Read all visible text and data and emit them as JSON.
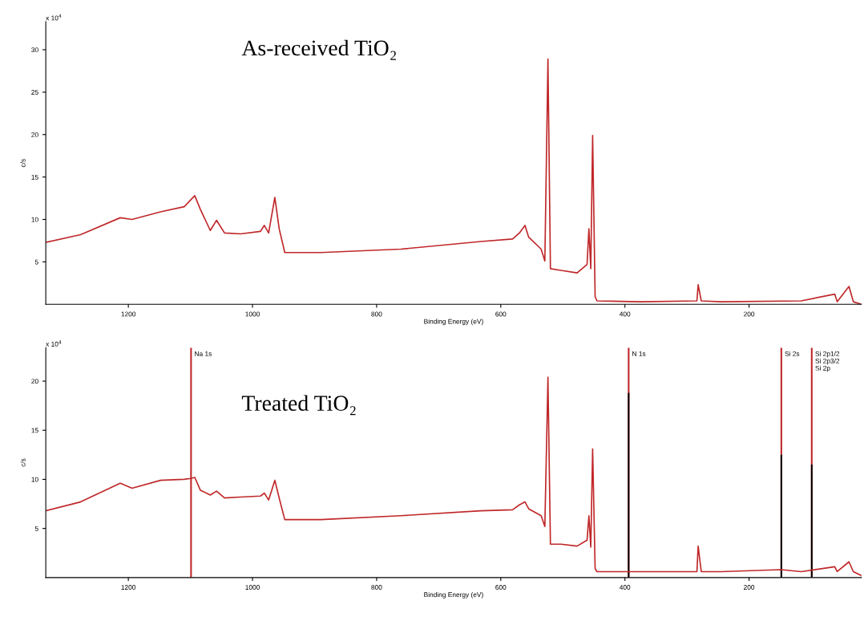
{
  "chart_data": [
    {
      "type": "line",
      "xlabel": "Binding Energy (eV)",
      "ylabel": "c/s",
      "annotations": [
        "As-received TiO₂",
        "x 10$^{4}$"
      ],
      "xlim": [
        1333,
        19
      ],
      "xticks": [
        1200,
        1000,
        800,
        600,
        400,
        200
      ],
      "ylim": [
        0,
        33.3
      ],
      "yticks": [
        5,
        10,
        15,
        20,
        25,
        30
      ],
      "grid": false,
      "legend": false,
      "series": [
        {
          "color": "#c0282a",
          "x": [
            1333,
            1277,
            1213,
            1194,
            1148,
            1110,
            1093,
            1084,
            1068,
            1058,
            1045,
            1019,
            987,
            981,
            974,
            964,
            957,
            948,
            890,
            761,
            632,
            581,
            570,
            561,
            555,
            535,
            529,
            524,
            520,
            503,
            477,
            461,
            458,
            455,
            452,
            448,
            445,
            374,
            284,
            282,
            277,
            245,
            116,
            62,
            58,
            39,
            32,
            19
          ],
          "values": [
            7.3,
            8.2,
            10.2,
            10.0,
            10.9,
            11.5,
            12.8,
            11.2,
            8.7,
            9.9,
            8.4,
            8.3,
            8.6,
            9.3,
            8.4,
            12.6,
            8.9,
            6.1,
            6.1,
            6.5,
            7.4,
            7.7,
            8.4,
            9.3,
            7.9,
            6.5,
            5.1,
            28.9,
            4.2,
            4.0,
            3.7,
            4.7,
            8.9,
            4.2,
            19.9,
            0.9,
            0.4,
            0.3,
            0.4,
            2.3,
            0.4,
            0.3,
            0.4,
            1.2,
            0.3,
            2.1,
            0.3,
            0.0
          ]
        }
      ]
    },
    {
      "type": "line",
      "xlabel": "Binding Energy (eV)",
      "ylabel": "c/s",
      "annotations": [
        "Treated TiO₂",
        "x 10$^{4}$"
      ],
      "xlim": [
        1333,
        19
      ],
      "xticks": [
        1200,
        1000,
        800,
        600,
        400,
        200
      ],
      "ylim": [
        0,
        23.4
      ],
      "yticks": [
        5,
        10,
        15,
        20
      ],
      "grid": false,
      "legend": false,
      "ref_lines": [
        {
          "axis": "x",
          "value": 1099,
          "label": "Na 1s",
          "color": "#c0282a"
        },
        {
          "axis": "x",
          "value": 394,
          "label": "N 1s",
          "color": "#c0282a"
        },
        {
          "axis": "x",
          "value": 148,
          "label": "Si 2s",
          "color": "#c0282a"
        },
        {
          "axis": "x",
          "value": 99,
          "label": "Si 2p1/2\nSi 2p3/2\nSi 2p",
          "color": "#c0282a"
        }
      ],
      "series": [
        {
          "color": "#c0282a",
          "x": [
            1333,
            1277,
            1213,
            1194,
            1148,
            1110,
            1099,
            1093,
            1084,
            1068,
            1058,
            1045,
            1019,
            987,
            981,
            974,
            964,
            957,
            948,
            890,
            761,
            632,
            581,
            570,
            561,
            555,
            535,
            529,
            524,
            520,
            503,
            477,
            461,
            458,
            455,
            452,
            448,
            445,
            374,
            284,
            282,
            277,
            245,
            148,
            116,
            62,
            58,
            39,
            32,
            19
          ],
          "values": [
            6.8,
            7.7,
            9.6,
            9.1,
            9.9,
            10.0,
            10.1,
            10.2,
            8.9,
            8.4,
            8.8,
            8.1,
            8.2,
            8.3,
            8.6,
            7.9,
            9.9,
            8.1,
            5.9,
            5.9,
            6.3,
            6.8,
            6.9,
            7.4,
            7.7,
            7.0,
            6.3,
            5.2,
            20.4,
            3.4,
            3.4,
            3.2,
            3.8,
            6.3,
            3.1,
            13.1,
            0.9,
            0.6,
            0.6,
            0.6,
            3.2,
            0.6,
            0.6,
            0.8,
            0.6,
            1.1,
            0.6,
            1.6,
            0.6,
            0.2
          ]
        },
        {
          "type": "bar",
          "color": "#000000",
          "x": [
            394,
            148,
            99
          ],
          "values": [
            18.8,
            12.5,
            11.5
          ]
        }
      ]
    }
  ]
}
